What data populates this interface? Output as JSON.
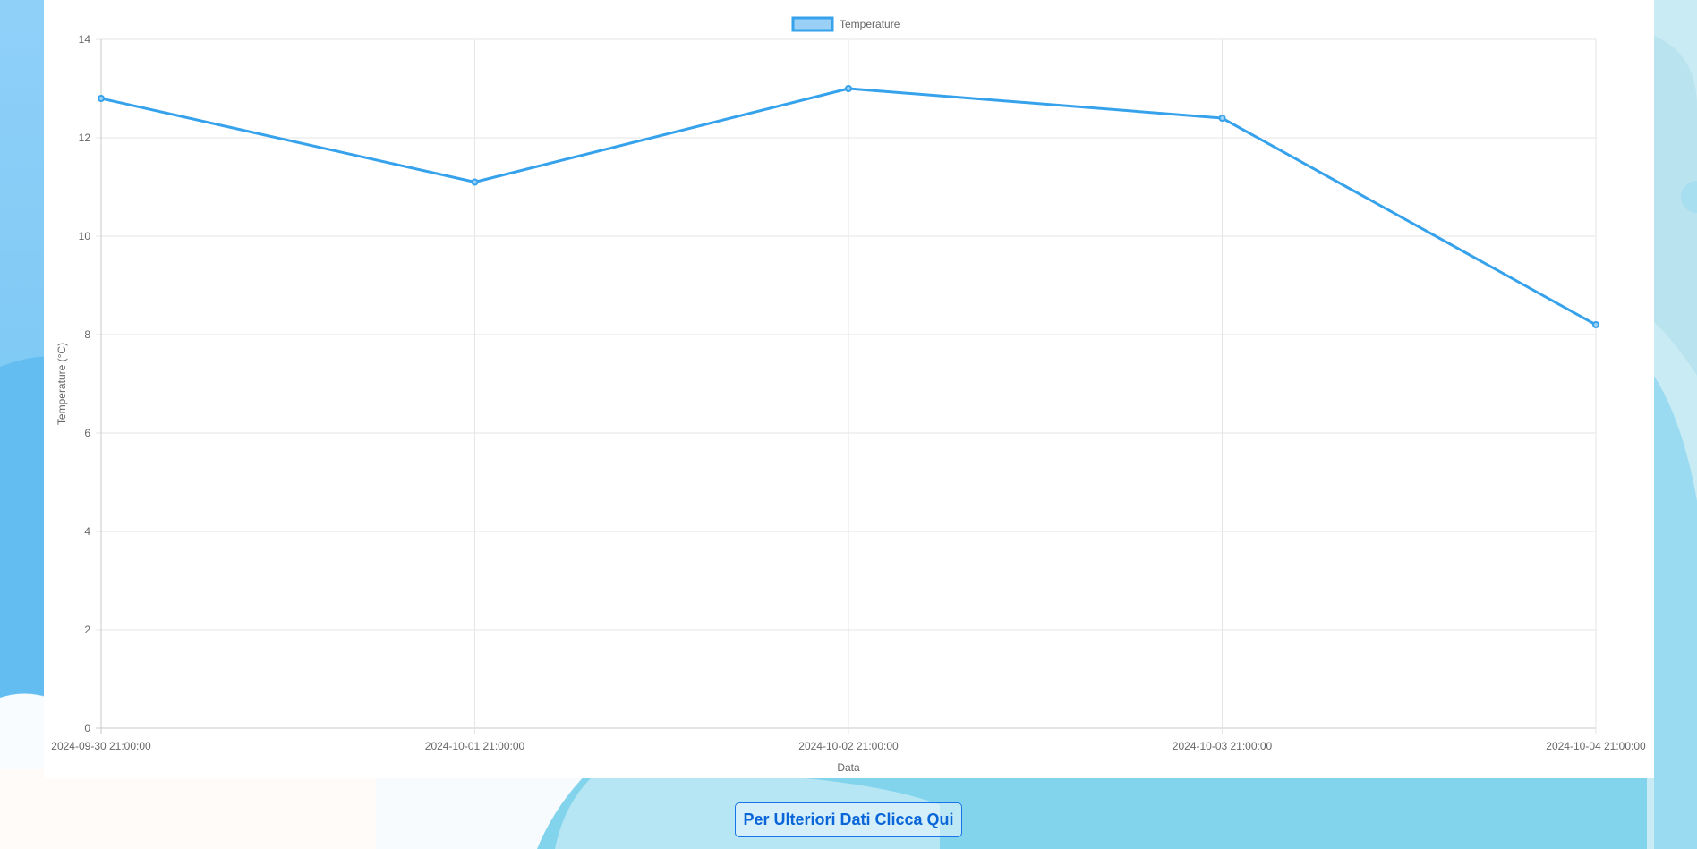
{
  "chart_data": {
    "type": "line",
    "categories": [
      "2024-09-30 21:00:00",
      "2024-10-01 21:00:00",
      "2024-10-02 21:00:00",
      "2024-10-03 21:00:00",
      "2024-10-04 21:00:00"
    ],
    "series": [
      {
        "name": "Temperature",
        "values": [
          12.8,
          11.1,
          13.0,
          12.4,
          8.2
        ],
        "color": "#36a2eb",
        "fill": "#9ad0f5"
      }
    ],
    "xlabel": "Data",
    "ylabel": "Temperature (°C)",
    "ylim": [
      0,
      14
    ],
    "yticks": [
      "0",
      "2",
      "4",
      "6",
      "8",
      "10",
      "12",
      "14"
    ],
    "grid": true,
    "legend_position": "top"
  },
  "actions": {
    "more_data_label": "Per Ulteriori Dati Clicca Qui"
  }
}
